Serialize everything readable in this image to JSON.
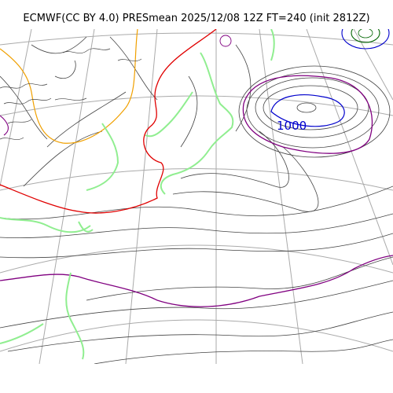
{
  "figure": {
    "title": "ECMWF(CC BY 4.0) PRESmean 2025/12/08 12Z FT=240 (init 2812Z)"
  },
  "map": {
    "field": "PRESmean",
    "isobar_labels": [
      {
        "value": "1000",
        "color": "#0000cc"
      }
    ],
    "colors": {
      "isobar_thin": "#444444",
      "low_center": "#0000cc",
      "isobar_purple": "#800080",
      "isobar_red": "#e00000",
      "isobar_orange": "#f0a000",
      "isobar_green_high": "#006400",
      "coastline": "#90ee90",
      "graticule": "#aaaaaa"
    }
  }
}
